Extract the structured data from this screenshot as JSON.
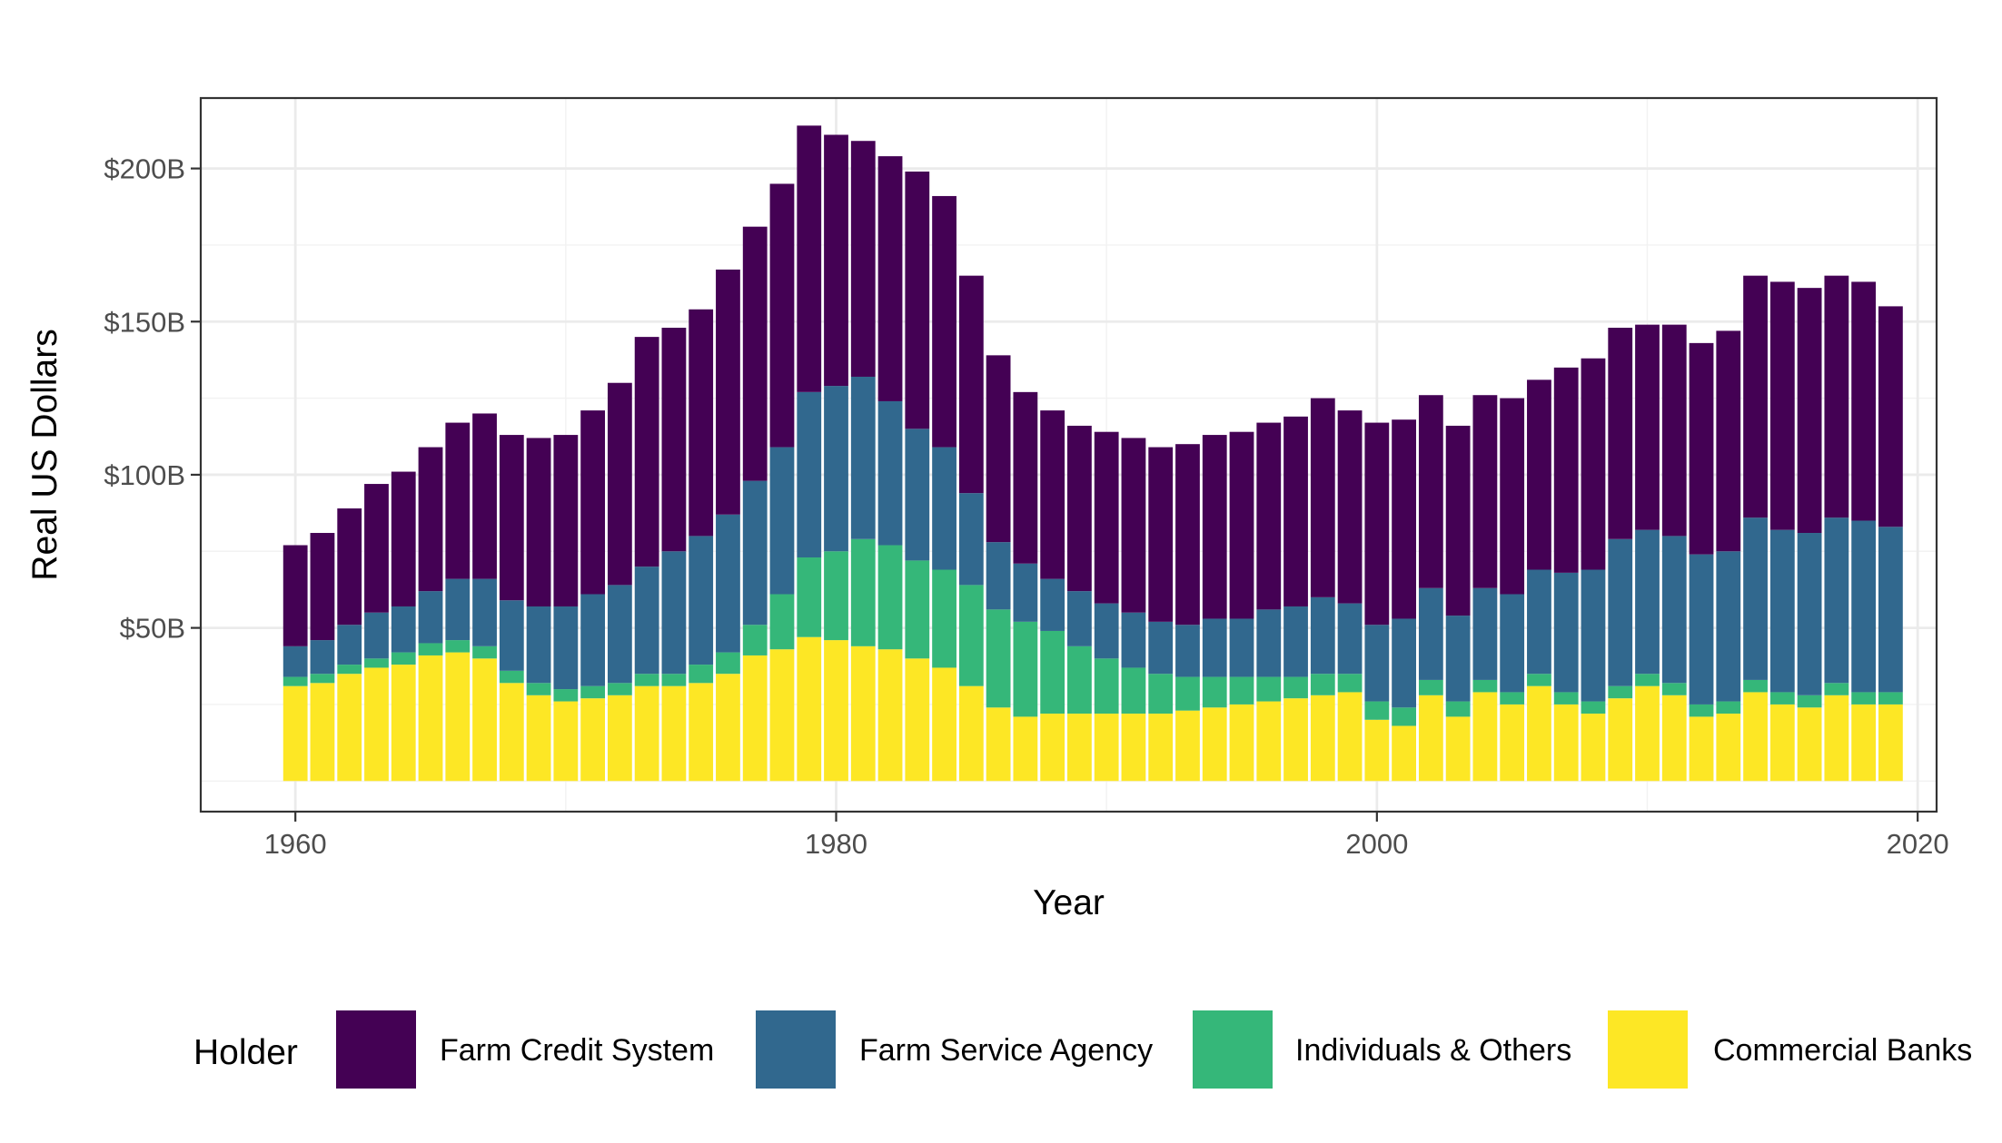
{
  "chart_data": {
    "type": "bar",
    "stacked": true,
    "title": "",
    "xlabel": "Year",
    "ylabel": "Real US Dollars",
    "xlim": [
      1956.5,
      2020.7
    ],
    "ylim": [
      -10,
      223
    ],
    "x_ticks": [
      {
        "value": 1960,
        "label": "1960"
      },
      {
        "value": 1980,
        "label": "1980"
      },
      {
        "value": 2000,
        "label": "2000"
      },
      {
        "value": 2020,
        "label": "2020"
      }
    ],
    "y_ticks": [
      {
        "value": 50,
        "label": "$50B"
      },
      {
        "value": 100,
        "label": "$100B"
      },
      {
        "value": 150,
        "label": "$150B"
      },
      {
        "value": 200,
        "label": "$200B"
      }
    ],
    "y_minor_ticks": [
      0,
      25,
      75,
      125,
      175
    ],
    "grid": true,
    "legend": {
      "title": "Holder",
      "position": "bottom"
    },
    "x": [
      1960,
      1961,
      1962,
      1963,
      1964,
      1965,
      1966,
      1967,
      1968,
      1969,
      1970,
      1971,
      1972,
      1973,
      1974,
      1975,
      1976,
      1977,
      1978,
      1979,
      1980,
      1981,
      1982,
      1983,
      1984,
      1985,
      1986,
      1987,
      1988,
      1989,
      1990,
      1991,
      1992,
      1993,
      1994,
      1995,
      1996,
      1997,
      1998,
      1999,
      2000,
      2001,
      2002,
      2003,
      2004,
      2005,
      2006,
      2007,
      2008,
      2009,
      2010,
      2011,
      2012,
      2013,
      2014,
      2015,
      2016,
      2017,
      2018,
      2019
    ],
    "series": [
      {
        "name": "Commercial Banks",
        "color": "#fde725",
        "values": [
          31,
          32,
          35,
          37,
          38,
          41,
          42,
          40,
          32,
          28,
          26,
          27,
          28,
          31,
          31,
          32,
          35,
          41,
          43,
          47,
          46,
          44,
          43,
          40,
          37,
          31,
          24,
          21,
          22,
          22,
          22,
          22,
          22,
          23,
          24,
          25,
          26,
          27,
          28,
          29,
          20,
          18,
          28,
          21,
          29,
          25,
          31,
          25,
          22,
          27,
          31,
          28,
          21,
          22,
          29,
          25,
          24,
          28,
          25,
          25
        ]
      },
      {
        "name": "Individuals & Others",
        "color": "#35b779",
        "values": [
          3,
          3,
          3,
          3,
          4,
          4,
          4,
          4,
          4,
          4,
          4,
          4,
          4,
          4,
          4,
          6,
          7,
          10,
          18,
          26,
          29,
          35,
          34,
          32,
          32,
          33,
          32,
          31,
          27,
          22,
          18,
          15,
          13,
          11,
          10,
          9,
          8,
          7,
          7,
          6,
          6,
          6,
          5,
          5,
          4,
          4,
          4,
          4,
          4,
          4,
          4,
          4,
          4,
          4,
          4,
          4,
          4,
          4,
          4,
          4
        ]
      },
      {
        "name": "Farm Service Agency",
        "color": "#31688e",
        "values": [
          10,
          11,
          13,
          15,
          15,
          17,
          20,
          22,
          23,
          25,
          27,
          30,
          32,
          35,
          40,
          42,
          45,
          47,
          48,
          54,
          54,
          53,
          47,
          43,
          40,
          30,
          22,
          19,
          17,
          18,
          18,
          18,
          17,
          17,
          19,
          19,
          22,
          23,
          25,
          23,
          25,
          29,
          30,
          28,
          30,
          32,
          34,
          39,
          43,
          48,
          47,
          48,
          49,
          49,
          53,
          53,
          53,
          54,
          56,
          54
        ]
      },
      {
        "name": "Farm Credit System",
        "color": "#440154",
        "values": [
          33,
          35,
          38,
          42,
          44,
          47,
          51,
          54,
          54,
          55,
          56,
          60,
          66,
          75,
          73,
          74,
          80,
          83,
          86,
          87,
          82,
          77,
          80,
          84,
          82,
          71,
          61,
          56,
          55,
          54,
          56,
          57,
          57,
          59,
          60,
          61,
          61,
          62,
          65,
          63,
          66,
          65,
          63,
          62,
          63,
          64,
          62,
          67,
          69,
          69,
          67,
          69,
          69,
          72,
          79,
          81,
          80,
          79,
          78,
          72
        ]
      }
    ]
  }
}
